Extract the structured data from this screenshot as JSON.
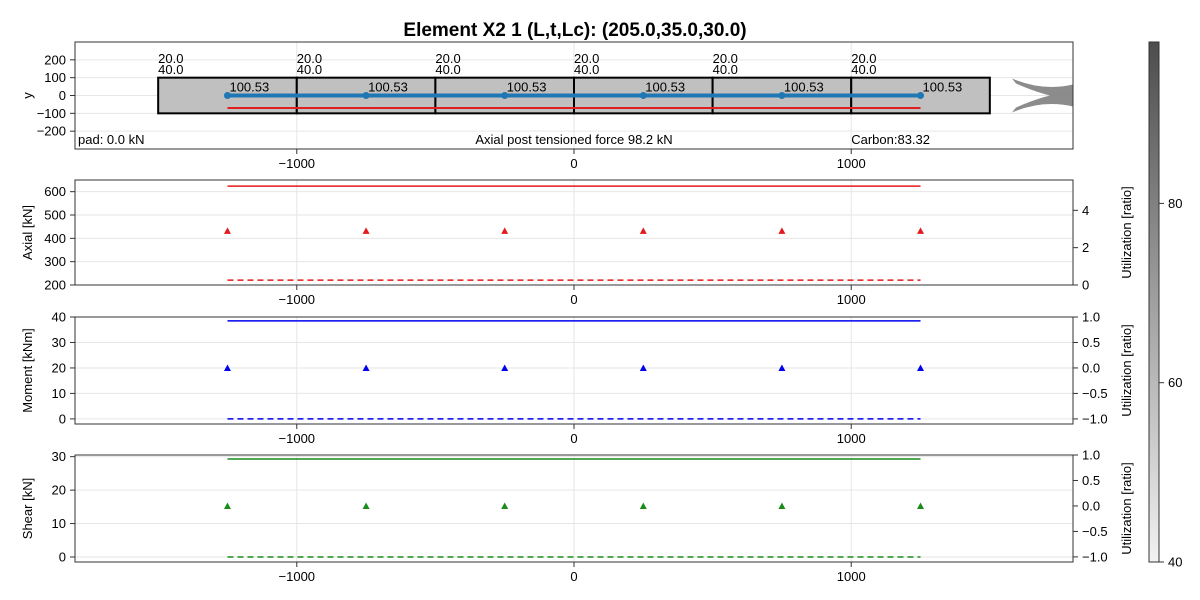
{
  "title": "Element X2 1 (L,t,Lc): (205.0,35.0,30.0)",
  "chart_data": [
    {
      "id": "geometry",
      "type": "line",
      "ylabel": "y",
      "xlim": [
        -1800,
        1800
      ],
      "ylim": [
        -300,
        300
      ],
      "xticks": [
        -1000,
        0,
        1000
      ],
      "xtick_labels": [
        "−1000",
        "0",
        "1000"
      ],
      "yticks": [
        200,
        100,
        0,
        -100,
        -200
      ],
      "ytick_labels": [
        "200",
        "100",
        "0",
        "−100",
        "−200"
      ],
      "grid": true,
      "segments": [
        {
          "x0": -1500,
          "x1": -1000
        },
        {
          "x0": -1000,
          "x1": -500
        },
        {
          "x0": -500,
          "x1": 0
        },
        {
          "x0": 0,
          "x1": 500
        },
        {
          "x0": 500,
          "x1": 1000
        },
        {
          "x0": 1000,
          "x1": 1500
        }
      ],
      "box_y": [
        -100,
        100
      ],
      "segment_top_labels": [
        "20.0",
        "40.0"
      ],
      "centroid_x": [
        -1250,
        -750,
        -250,
        250,
        750,
        1250
      ],
      "centroid_labels": [
        "100.53",
        "100.53",
        "100.53",
        "100.53",
        "100.53",
        "100.53"
      ],
      "blue_line_y": 0,
      "red_line_y": -70,
      "line_x_range": [
        -1250,
        1250
      ],
      "annotations": {
        "left": "pad: 0.0 kN",
        "center": "Axial post tensioned force 98.2 kN",
        "right": "Carbon:83.32"
      },
      "colors": {
        "box_fill": "#c0c0c0",
        "blue": "#1f77b4",
        "red": "#e02020",
        "side_shape": "#7f7f7f"
      }
    },
    {
      "id": "axial",
      "type": "line",
      "ylabel": "Axial [kN]",
      "y2label": "Utilization [ratio]",
      "xlim": [
        -1800,
        1800
      ],
      "ylim": [
        200,
        650
      ],
      "y2lim": [
        0,
        5.625
      ],
      "xticks": [
        -1000,
        0,
        1000
      ],
      "xtick_labels": [
        "−1000",
        "0",
        "1000"
      ],
      "yticks": [
        600,
        500,
        400,
        300,
        200
      ],
      "ytick_labels": [
        "600",
        "500",
        "400",
        "300",
        "200"
      ],
      "y2ticks": [
        4,
        2,
        0
      ],
      "y2tick_labels": [
        "4",
        "2",
        "0"
      ],
      "grid": true,
      "capacity": {
        "x": [
          -1250,
          1250
        ],
        "y": 624
      },
      "demand": {
        "x": [
          -1250,
          1250
        ],
        "y": 221
      },
      "utilization_points": {
        "x": [
          -1250,
          -750,
          -250,
          250,
          750,
          1250
        ],
        "y": [
          2.9,
          2.9,
          2.9,
          2.9,
          2.9,
          2.9
        ]
      },
      "color": "#e41a1c"
    },
    {
      "id": "moment",
      "type": "line",
      "ylabel": "Moment [kNm]",
      "y2label": "Utilization [ratio]",
      "xlim": [
        -1800,
        1800
      ],
      "ylim": [
        -2,
        40
      ],
      "y2lim": [
        -1.1,
        1.0
      ],
      "xticks": [
        -1000,
        0,
        1000
      ],
      "xtick_labels": [
        "−1000",
        "0",
        "1000"
      ],
      "yticks": [
        40,
        30,
        20,
        10,
        0
      ],
      "ytick_labels": [
        "40",
        "30",
        "20",
        "10",
        "0"
      ],
      "y2ticks": [
        1.0,
        0.5,
        0.0,
        -0.5,
        -1.0
      ],
      "y2tick_labels": [
        "1.0",
        "0.5",
        "0.0",
        "−0.5",
        "−1.0"
      ],
      "grid": true,
      "capacity": {
        "x": [
          -1250,
          1250
        ],
        "y": 38.5
      },
      "demand": {
        "x": [
          -1250,
          1250
        ],
        "y": 0
      },
      "utilization_points": {
        "x": [
          -1250,
          -750,
          -250,
          250,
          750,
          1250
        ],
        "y": [
          0.0,
          0.0,
          0.0,
          0.0,
          0.0,
          0.0
        ]
      },
      "color": "#0000ee"
    },
    {
      "id": "shear",
      "type": "line",
      "ylabel": "Shear [kN]",
      "y2label": "Utilization [ratio]",
      "xlim": [
        -1800,
        1800
      ],
      "ylim": [
        -1.5,
        30.5
      ],
      "y2lim": [
        -1.1,
        1.0
      ],
      "xticks": [
        -1000,
        0,
        1000
      ],
      "xtick_labels": [
        "−1000",
        "0",
        "1000"
      ],
      "yticks": [
        30,
        20,
        10,
        0
      ],
      "ytick_labels": [
        "30",
        "20",
        "10",
        "0"
      ],
      "y2ticks": [
        1.0,
        0.5,
        0.0,
        -0.5,
        -1.0
      ],
      "y2tick_labels": [
        "1.0",
        "0.5",
        "0.0",
        "−0.5",
        "−1.0"
      ],
      "grid": true,
      "capacity": {
        "x": [
          -1250,
          1250
        ],
        "y": 29.3
      },
      "demand": {
        "x": [
          -1250,
          1250
        ],
        "y": 0
      },
      "utilization_points": {
        "x": [
          -1250,
          -750,
          -250,
          250,
          750,
          1250
        ],
        "y": [
          0.0,
          0.0,
          0.0,
          0.0,
          0.0,
          0.0
        ]
      },
      "color": "#1a8c1a"
    },
    {
      "id": "colorbar",
      "type": "heatmap",
      "clim": [
        40,
        98
      ],
      "ticks": [
        80,
        60,
        40
      ],
      "tick_labels": [
        "80",
        "60",
        "40"
      ],
      "colors": {
        "low": "#f2f2f2",
        "high": "#4d4d4d"
      }
    }
  ]
}
